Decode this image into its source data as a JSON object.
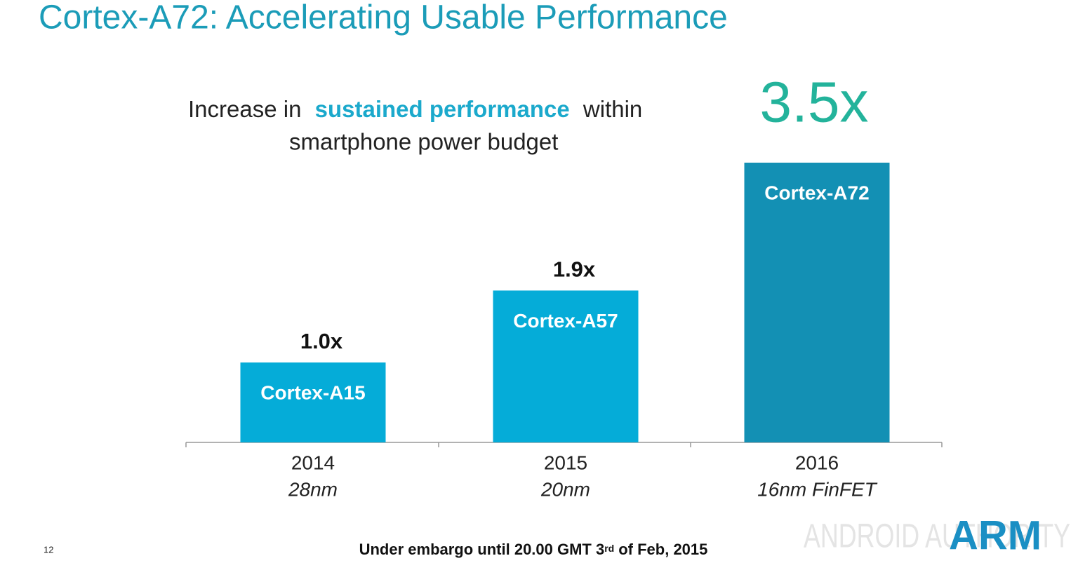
{
  "chart_data": {
    "type": "bar",
    "title": "Cortex-A72: Accelerating Usable Performance",
    "subtitle": [
      "Increase in",
      "sustained performance",
      "within",
      "smartphone power budget"
    ],
    "categories": [
      "2014",
      "2015",
      "2016"
    ],
    "process_nodes": [
      "28nm",
      "20nm",
      "16nm FinFET"
    ],
    "bar_labels": [
      "Cortex-A15",
      "Cortex-A57",
      "Cortex-A72"
    ],
    "values": [
      1.0,
      1.9,
      3.5
    ],
    "value_labels": [
      "1.0x",
      "1.9x",
      "3.5x"
    ],
    "colors": [
      "#05acd8",
      "#05acd8",
      "#1390b4"
    ],
    "footer": [
      "Under embargo until 20.00 GMT 3",
      "rd",
      "of Feb, 2015"
    ],
    "page_number": "12",
    "logo": "ARM",
    "watermark": "ANDROID AUTHORITY"
  }
}
